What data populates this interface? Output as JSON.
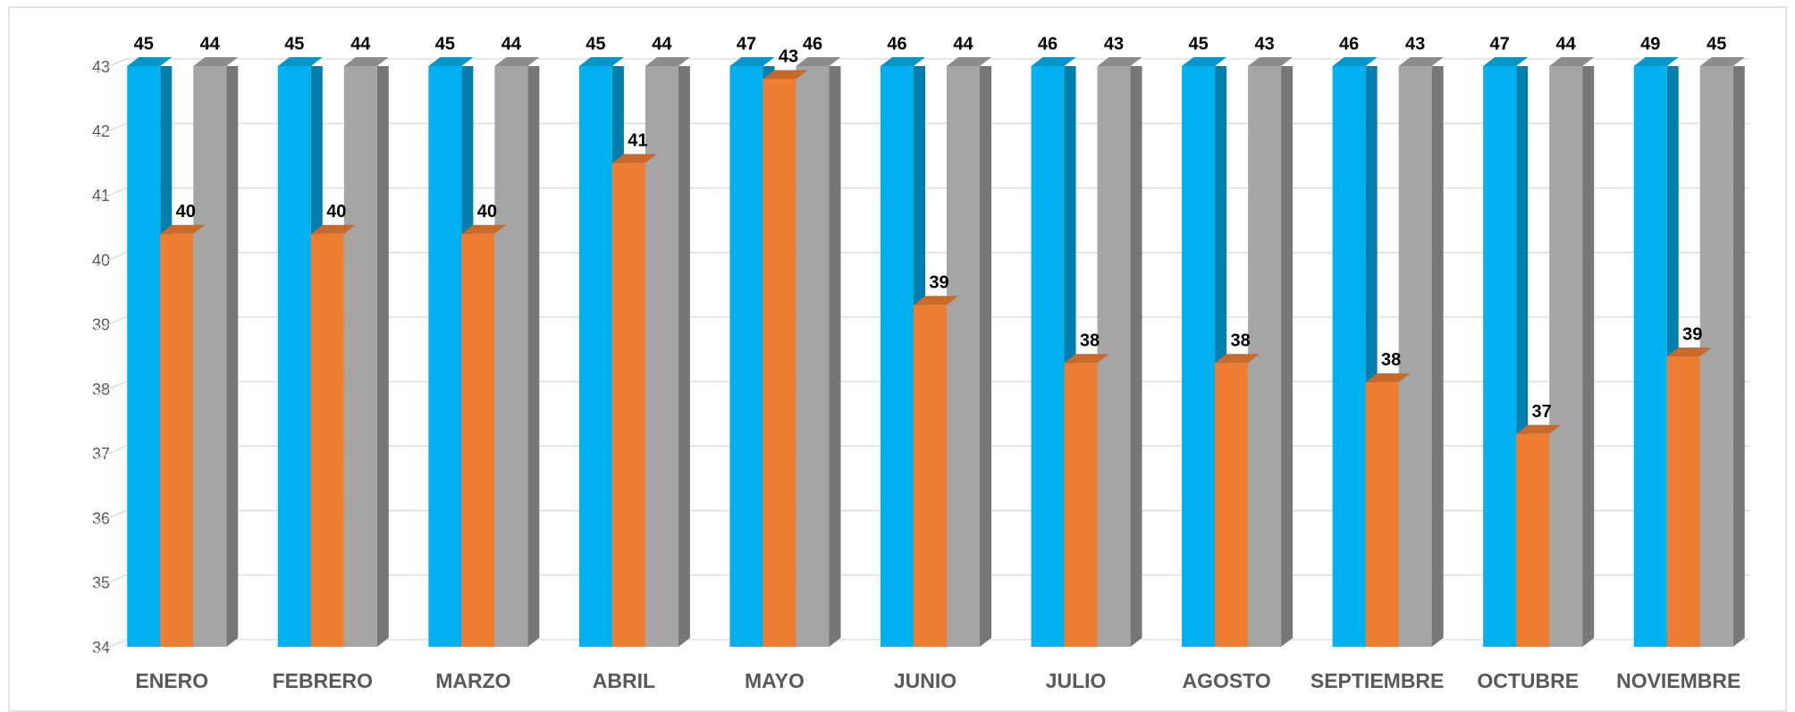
{
  "chart_data": {
    "type": "bar3d",
    "categories": [
      "ENERO",
      "FEBRERO",
      "MARZO",
      "ABRIL",
      "MAYO",
      "JUNIO",
      "JULIO",
      "AGOSTO",
      "SEPTIEMBRE",
      "OCTUBRE",
      "NOVIEMBRE"
    ],
    "series": [
      {
        "color": "#00b0f0",
        "values": [
          45,
          45,
          45,
          45,
          47,
          46,
          46,
          45,
          46,
          47,
          49
        ]
      },
      {
        "color": "#ed7d31",
        "values": [
          40.4,
          40.4,
          40.4,
          41.5,
          42.8,
          39.3,
          38.4,
          38.4,
          38.1,
          37.3,
          38.5
        ],
        "value_labels": [
          "40",
          "40",
          "40",
          "41",
          "43",
          "39",
          "38",
          "38",
          "38",
          "37",
          "39"
        ]
      },
      {
        "color": "#a5a5a5",
        "values": [
          44,
          44,
          44,
          44,
          46,
          44,
          43,
          43,
          43,
          44,
          45
        ]
      }
    ],
    "ylim": [
      34,
      43
    ],
    "yticks": [
      34,
      35,
      36,
      37,
      38,
      39,
      40,
      41,
      42,
      43
    ],
    "grid": true
  }
}
